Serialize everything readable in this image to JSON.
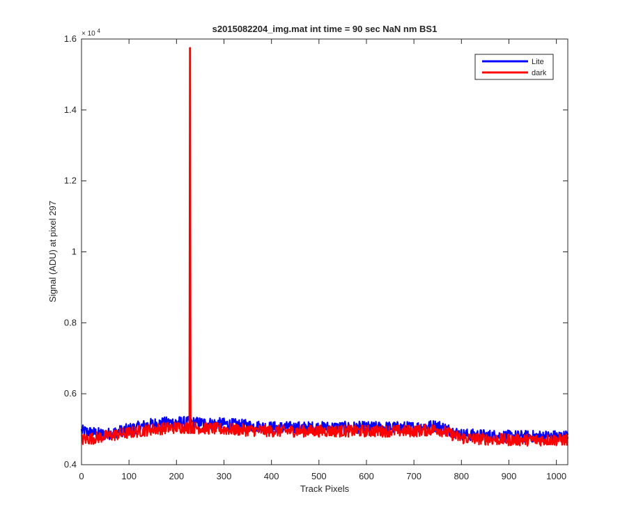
{
  "chart_data": {
    "type": "line",
    "title": "s2015082204_img.mat int time = 90 sec  NaN nm BS1",
    "xlabel": "Track Pixels",
    "ylabel": "Signal (ADU) at pixel 297",
    "xlim": [
      0,
      1024
    ],
    "ylim": [
      4000,
      16000
    ],
    "xticks": [
      0,
      100,
      200,
      300,
      400,
      500,
      600,
      700,
      800,
      900,
      1000
    ],
    "yticks": [
      4000,
      6000,
      8000,
      10000,
      12000,
      14000,
      16000
    ],
    "ytick_labels": [
      "0.4",
      "0.6",
      "0.8",
      "1",
      "1.2",
      "1.4",
      "1.6"
    ],
    "y_exponent": "× 10",
    "y_exponent_power": "4",
    "grid": false,
    "legend_position": "top-right",
    "series": [
      {
        "name": "Lite",
        "color": "#0000ff",
        "x": [
          0,
          50,
          100,
          150,
          200,
          300,
          400,
          500,
          600,
          700,
          750,
          800,
          900,
          1024
        ],
        "values": [
          4950,
          4850,
          5000,
          5150,
          5200,
          5150,
          5050,
          5050,
          5050,
          5050,
          5100,
          4850,
          4800,
          4800
        ]
      },
      {
        "name": "dark",
        "color": "#ff0000",
        "x": [
          0,
          50,
          100,
          150,
          200,
          227,
          228,
          229,
          230,
          300,
          400,
          500,
          600,
          700,
          750,
          800,
          900,
          1024
        ],
        "values": [
          4700,
          4800,
          4900,
          5000,
          5050,
          5050,
          15750,
          15750,
          5050,
          5000,
          4950,
          4950,
          4950,
          4950,
          5000,
          4750,
          4700,
          4700
        ]
      }
    ]
  }
}
